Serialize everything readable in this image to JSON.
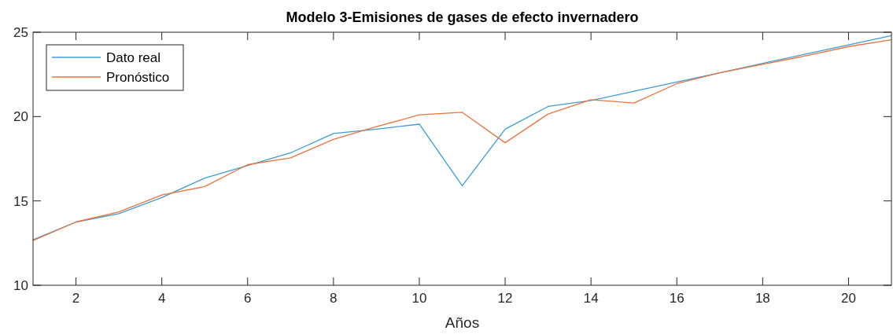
{
  "chart_data": {
    "type": "line",
    "title": "Modelo 3-Emisiones de gases de efecto invernadero",
    "xlabel": "Años",
    "x": [
      1,
      2,
      3,
      4,
      5,
      6,
      7,
      8,
      9,
      10,
      11,
      12,
      13,
      14,
      15,
      16,
      17,
      18,
      19,
      20,
      21
    ],
    "series": [
      {
        "name": "Dato real",
        "color": "#3d9bd6",
        "values": [
          12.7,
          13.75,
          14.25,
          15.2,
          16.35,
          17.1,
          17.85,
          19.0,
          19.25,
          19.55,
          15.9,
          19.25,
          20.6,
          20.95,
          21.5,
          22.05,
          22.6,
          23.15,
          23.7,
          24.25,
          24.8
        ]
      },
      {
        "name": "Pronóstico",
        "color": "#e8743f",
        "values": [
          12.65,
          13.75,
          14.35,
          15.35,
          15.85,
          17.15,
          17.55,
          18.65,
          19.4,
          20.1,
          20.25,
          18.45,
          20.15,
          21.0,
          20.8,
          21.95,
          22.6,
          23.1,
          23.6,
          24.15,
          24.55
        ]
      }
    ],
    "xlim": [
      1,
      21
    ],
    "xticks": [
      2,
      4,
      6,
      8,
      10,
      12,
      14,
      16,
      18,
      20
    ],
    "ylim": [
      10,
      25
    ],
    "yticks": [
      10,
      15,
      20,
      25
    ],
    "grid": false,
    "legend": "top left",
    "marker": "none",
    "line_style": "solid"
  }
}
